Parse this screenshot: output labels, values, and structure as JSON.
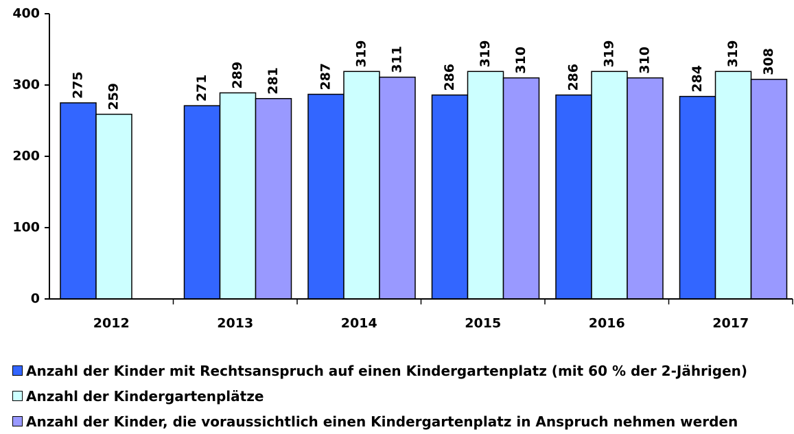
{
  "chart_data": {
    "type": "bar",
    "categories": [
      "2012",
      "2013",
      "2014",
      "2015",
      "2016",
      "2017"
    ],
    "series": [
      {
        "name": "Anzahl der Kinder mit Rechtsanspruch auf einen Kindergartenplatz (mit 60 % der 2-Jährigen)",
        "color": "#3366ff",
        "values": [
          275,
          271,
          287,
          286,
          286,
          284
        ]
      },
      {
        "name": "Anzahl der Kindergartenplätze",
        "color": "#ccffff",
        "values": [
          259,
          289,
          319,
          319,
          319,
          319
        ]
      },
      {
        "name": "Anzahl der Kinder, die voraussichtlich einen Kindergartenplatz in Anspruch nehmen werden",
        "color": "#9999ff",
        "values": [
          null,
          281,
          311,
          310,
          310,
          308
        ]
      }
    ],
    "ylim": [
      0,
      400
    ],
    "yticks": [
      0,
      100,
      200,
      300,
      400
    ],
    "grid": false
  }
}
